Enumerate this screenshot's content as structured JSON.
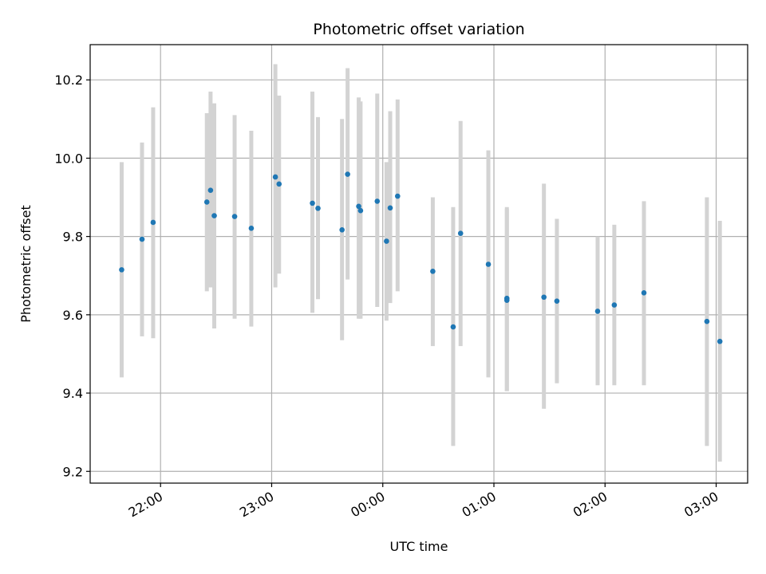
{
  "chart_data": {
    "type": "scatter",
    "title": "Photometric offset variation",
    "xlabel": "UTC time",
    "ylabel": "Photometric offset",
    "x_ticks": [
      "22:00",
      "23:00",
      "00:00",
      "01:00",
      "02:00",
      "03:00"
    ],
    "y_ticks": [
      "9.2",
      "9.4",
      "9.6",
      "9.8",
      "10.0",
      "10.2"
    ],
    "xlim": [
      "21:22",
      "03:17"
    ],
    "ylim": [
      9.17,
      10.29
    ],
    "grid": true,
    "colors": {
      "point": "#1f77b4",
      "errorbar": "#d3d3d3",
      "grid": "#b0b0b0"
    },
    "points": [
      {
        "t": "21:39",
        "y": 9.715,
        "lo": 9.44,
        "hi": 9.99
      },
      {
        "t": "21:50",
        "y": 9.793,
        "lo": 9.545,
        "hi": 10.04
      },
      {
        "t": "21:56",
        "y": 9.836,
        "lo": 9.54,
        "hi": 10.13
      },
      {
        "t": "22:25",
        "y": 9.888,
        "lo": 9.66,
        "hi": 10.115
      },
      {
        "t": "22:27",
        "y": 9.918,
        "lo": 9.67,
        "hi": 10.17
      },
      {
        "t": "22:29",
        "y": 9.853,
        "lo": 9.565,
        "hi": 10.14
      },
      {
        "t": "22:40",
        "y": 9.851,
        "lo": 9.59,
        "hi": 10.11
      },
      {
        "t": "22:49",
        "y": 9.821,
        "lo": 9.57,
        "hi": 10.07
      },
      {
        "t": "23:02",
        "y": 9.952,
        "lo": 9.67,
        "hi": 10.24
      },
      {
        "t": "23:04",
        "y": 9.934,
        "lo": 9.705,
        "hi": 10.16
      },
      {
        "t": "23:22",
        "y": 9.885,
        "lo": 9.605,
        "hi": 10.17
      },
      {
        "t": "23:25",
        "y": 9.872,
        "lo": 9.64,
        "hi": 10.105
      },
      {
        "t": "23:38",
        "y": 9.817,
        "lo": 9.535,
        "hi": 10.1
      },
      {
        "t": "23:41",
        "y": 9.959,
        "lo": 9.69,
        "hi": 10.23
      },
      {
        "t": "23:47",
        "y": 9.877,
        "lo": 9.59,
        "hi": 10.155
      },
      {
        "t": "23:48",
        "y": 9.866,
        "lo": 9.59,
        "hi": 10.145
      },
      {
        "t": "23:57",
        "y": 9.89,
        "lo": 9.62,
        "hi": 10.165
      },
      {
        "t": "00:02",
        "y": 9.788,
        "lo": 9.585,
        "hi": 9.99
      },
      {
        "t": "00:04",
        "y": 9.873,
        "lo": 9.63,
        "hi": 10.12
      },
      {
        "t": "00:08",
        "y": 9.903,
        "lo": 9.66,
        "hi": 10.15
      },
      {
        "t": "00:27",
        "y": 9.711,
        "lo": 9.52,
        "hi": 9.9
      },
      {
        "t": "00:38",
        "y": 9.569,
        "lo": 9.265,
        "hi": 9.875
      },
      {
        "t": "00:42",
        "y": 9.808,
        "lo": 9.52,
        "hi": 10.095
      },
      {
        "t": "00:57",
        "y": 9.729,
        "lo": 9.44,
        "hi": 10.02
      },
      {
        "t": "01:07",
        "y": 9.642,
        "lo": 9.405,
        "hi": 9.875
      },
      {
        "t": "01:07",
        "y": 9.637,
        "lo": 9.405,
        "hi": 9.87
      },
      {
        "t": "01:27",
        "y": 9.645,
        "lo": 9.36,
        "hi": 9.935
      },
      {
        "t": "01:34",
        "y": 9.635,
        "lo": 9.425,
        "hi": 9.845
      },
      {
        "t": "01:56",
        "y": 9.609,
        "lo": 9.42,
        "hi": 9.8
      },
      {
        "t": "02:05",
        "y": 9.625,
        "lo": 9.42,
        "hi": 9.83
      },
      {
        "t": "02:21",
        "y": 9.656,
        "lo": 9.42,
        "hi": 9.89
      },
      {
        "t": "02:55",
        "y": 9.583,
        "lo": 9.265,
        "hi": 9.9
      },
      {
        "t": "03:02",
        "y": 9.532,
        "lo": 9.225,
        "hi": 9.84
      }
    ]
  }
}
